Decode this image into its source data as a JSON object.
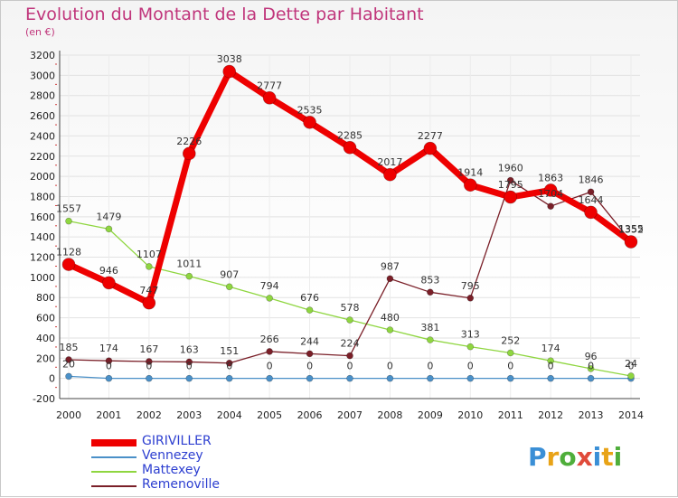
{
  "header": {
    "title": "Evolution du Montant de la Dette par Habitant",
    "subtitle": "(en €)"
  },
  "logo": {
    "text": "Proxiti",
    "letter_colors": [
      "#3a8fd6",
      "#e8a317",
      "#4fae3b",
      "#e04a3a",
      "#3a8fd6",
      "#e8a317",
      "#4fae3b"
    ]
  },
  "chart_data": {
    "type": "line",
    "title": "Evolution du Montant de la Dette par Habitant",
    "subtitle": "(en €)",
    "xlabel": "",
    "ylabel": "",
    "x": [
      2000,
      2001,
      2002,
      2003,
      2004,
      2005,
      2006,
      2007,
      2008,
      2009,
      2010,
      2011,
      2012,
      2013,
      2014
    ],
    "ylim": [
      -200,
      3200
    ],
    "yticks": [
      -200,
      0,
      200,
      400,
      600,
      800,
      1000,
      1200,
      1400,
      1600,
      1800,
      2000,
      2200,
      2400,
      2600,
      2800,
      3000,
      3200
    ],
    "grid": true,
    "legend": "bottom-left",
    "series": [
      {
        "name": "GIRIVILLER",
        "color": "#ee0000",
        "values": [
          1128,
          946,
          747,
          2226,
          3038,
          2777,
          2535,
          2285,
          2017,
          2277,
          1914,
          1795,
          1863,
          1644,
          1352
        ],
        "labels": [
          "1128",
          "946",
          "747",
          "2226",
          "3038",
          "2777",
          "2535",
          "2285",
          "2017",
          "2277",
          "1914",
          "1795",
          "1863",
          "1644",
          "1352"
        ]
      },
      {
        "name": "Vennezey",
        "color": "#4a90c8",
        "values": [
          20,
          0,
          0,
          0,
          0,
          0,
          0,
          0,
          0,
          0,
          0,
          0,
          0,
          0,
          0
        ],
        "labels": [
          "20",
          "0",
          "0",
          "0",
          "0",
          "0",
          "0",
          "0",
          "0",
          "0",
          "0",
          "0",
          "0",
          "0",
          "0"
        ]
      },
      {
        "name": "Mattexey",
        "color": "#8fd640",
        "values": [
          1557,
          1479,
          1107,
          1011,
          907,
          794,
          676,
          578,
          480,
          381,
          313,
          252,
          174,
          96,
          24
        ],
        "labels": [
          "1557",
          "1479",
          "1107",
          "1011",
          "907",
          "794",
          "676",
          "578",
          "480",
          "381",
          "313",
          "252",
          "174",
          "96",
          "24"
        ]
      },
      {
        "name": "Remenoville",
        "color": "#7a1f28",
        "values": [
          185,
          174,
          167,
          163,
          151,
          266,
          244,
          224,
          987,
          853,
          795,
          1960,
          1704,
          1846,
          1355
        ],
        "labels": [
          "185",
          "174",
          "167",
          "163",
          "151",
          "266",
          "244",
          "224",
          "987",
          "853",
          "795",
          "1960",
          "1704",
          "1846",
          "1355"
        ]
      }
    ]
  }
}
